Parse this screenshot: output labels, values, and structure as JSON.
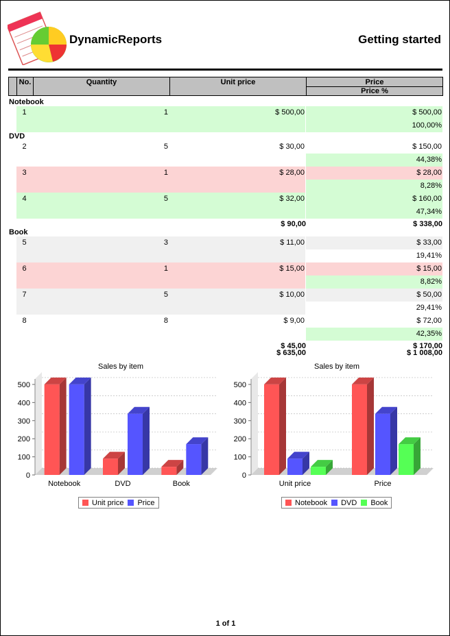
{
  "header": {
    "brand": "DynamicReports",
    "title": "Getting started"
  },
  "table": {
    "columns": {
      "no": "No.",
      "quantity": "Quantity",
      "unit_price": "Unit price",
      "price": "Price",
      "price_pct": "Price %"
    },
    "groups": [
      {
        "label": "Notebook",
        "rows": [
          {
            "no": "1",
            "quantity": "1",
            "unit_price": "$ 500,00",
            "price": "$ 500,00",
            "price_pct": "100,00%",
            "highlight": "green"
          }
        ],
        "totals": null
      },
      {
        "label": "DVD",
        "rows": [
          {
            "no": "2",
            "quantity": "5",
            "unit_price": "$ 30,00",
            "price": "$ 150,00",
            "price_pct": "44,38%",
            "highlight": "none"
          },
          {
            "no": "3",
            "quantity": "1",
            "unit_price": "$ 28,00",
            "price": "$ 28,00",
            "price_pct": "8,28%",
            "highlight": "red"
          },
          {
            "no": "4",
            "quantity": "5",
            "unit_price": "$ 32,00",
            "price": "$ 160,00",
            "price_pct": "47,34%",
            "highlight": "green"
          }
        ],
        "totals": {
          "unit_price": "$ 90,00",
          "price": "$ 338,00"
        }
      },
      {
        "label": "Book",
        "rows": [
          {
            "no": "5",
            "quantity": "3",
            "unit_price": "$ 11,00",
            "price": "$ 33,00",
            "price_pct": "19,41%",
            "highlight": "grey"
          },
          {
            "no": "6",
            "quantity": "1",
            "unit_price": "$ 15,00",
            "price": "$ 15,00",
            "price_pct": "8,82%",
            "highlight": "red"
          },
          {
            "no": "7",
            "quantity": "5",
            "unit_price": "$ 10,00",
            "price": "$ 50,00",
            "price_pct": "29,41%",
            "highlight": "grey"
          },
          {
            "no": "8",
            "quantity": "8",
            "unit_price": "$ 9,00",
            "price": "$ 72,00",
            "price_pct": "42,35%",
            "highlight": "none"
          }
        ],
        "totals": {
          "unit_price": "$ 45,00",
          "price": "$ 170,00"
        }
      }
    ],
    "grand_total": {
      "unit_price": "$ 635,00",
      "price": "$ 1 008,00"
    }
  },
  "colors": {
    "red": "#ff5555",
    "blue": "#5555ff",
    "green": "#55ff55",
    "row_green": "#d4fcd4",
    "row_red": "#fcd4d4",
    "row_grey": "#f0f0f0",
    "header_bg": "#c0c0c0"
  },
  "chart_data": [
    {
      "type": "bar",
      "title": "Sales by item",
      "categories": [
        "Notebook",
        "DVD",
        "Book"
      ],
      "series": [
        {
          "name": "Unit price",
          "values": [
            500,
            90,
            45
          ]
        },
        {
          "name": "Price",
          "values": [
            500,
            338,
            170
          ]
        }
      ],
      "ylim": [
        0,
        500
      ],
      "yticks": [
        0,
        100,
        200,
        300,
        400,
        500
      ],
      "grid": true,
      "legend": "bottom"
    },
    {
      "type": "bar",
      "title": "Sales by item",
      "categories": [
        "Unit price",
        "Price"
      ],
      "series": [
        {
          "name": "Notebook",
          "values": [
            500,
            500
          ]
        },
        {
          "name": "DVD",
          "values": [
            90,
            338
          ]
        },
        {
          "name": "Book",
          "values": [
            45,
            170
          ]
        }
      ],
      "ylim": [
        0,
        500
      ],
      "yticks": [
        0,
        100,
        200,
        300,
        400,
        500
      ],
      "grid": true,
      "legend": "bottom"
    }
  ],
  "footer": {
    "page": "1 of 1"
  }
}
